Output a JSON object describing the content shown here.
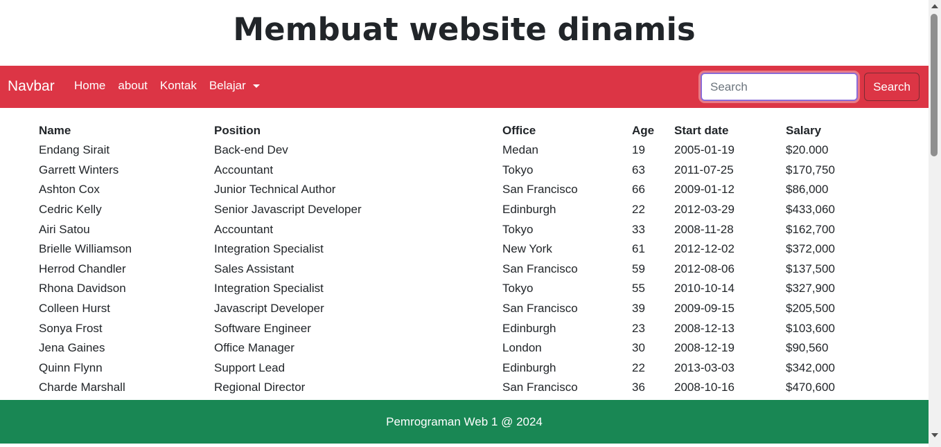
{
  "page": {
    "title": "Membuat website dinamis"
  },
  "navbar": {
    "brand": "Navbar",
    "links": [
      "Home",
      "about",
      "Kontak"
    ],
    "dropdown_label": "Belajar",
    "search_placeholder": "Search",
    "search_value": "",
    "search_button": "Search",
    "background_color": "#dc3545"
  },
  "table": {
    "headers": [
      "Name",
      "Position",
      "Office",
      "Age",
      "Start date",
      "Salary"
    ],
    "rows": [
      [
        "Endang Sirait",
        "Back-end Dev",
        "Medan",
        "19",
        "2005-01-19",
        "$20.000"
      ],
      [
        "Garrett Winters",
        "Accountant",
        "Tokyo",
        "63",
        "2011-07-25",
        "$170,750"
      ],
      [
        "Ashton Cox",
        "Junior Technical Author",
        "San Francisco",
        "66",
        "2009-01-12",
        "$86,000"
      ],
      [
        "Cedric Kelly",
        "Senior Javascript Developer",
        "Edinburgh",
        "22",
        "2012-03-29",
        "$433,060"
      ],
      [
        "Airi Satou",
        "Accountant",
        "Tokyo",
        "33",
        "2008-11-28",
        "$162,700"
      ],
      [
        "Brielle Williamson",
        "Integration Specialist",
        "New York",
        "61",
        "2012-12-02",
        "$372,000"
      ],
      [
        "Herrod Chandler",
        "Sales Assistant",
        "San Francisco",
        "59",
        "2012-08-06",
        "$137,500"
      ],
      [
        "Rhona Davidson",
        "Integration Specialist",
        "Tokyo",
        "55",
        "2010-10-14",
        "$327,900"
      ],
      [
        "Colleen Hurst",
        "Javascript Developer",
        "San Francisco",
        "39",
        "2009-09-15",
        "$205,500"
      ],
      [
        "Sonya Frost",
        "Software Engineer",
        "Edinburgh",
        "23",
        "2008-12-13",
        "$103,600"
      ],
      [
        "Jena Gaines",
        "Office Manager",
        "London",
        "30",
        "2008-12-19",
        "$90,560"
      ],
      [
        "Quinn Flynn",
        "Support Lead",
        "Edinburgh",
        "22",
        "2013-03-03",
        "$342,000"
      ],
      [
        "Charde Marshall",
        "Regional Director",
        "San Francisco",
        "36",
        "2008-10-16",
        "$470,600"
      ]
    ]
  },
  "footer": {
    "text": "Pemrograman Web 1 @ 2024",
    "background_color": "#198754"
  },
  "icons": {
    "dropdown": "caret-down-icon"
  }
}
